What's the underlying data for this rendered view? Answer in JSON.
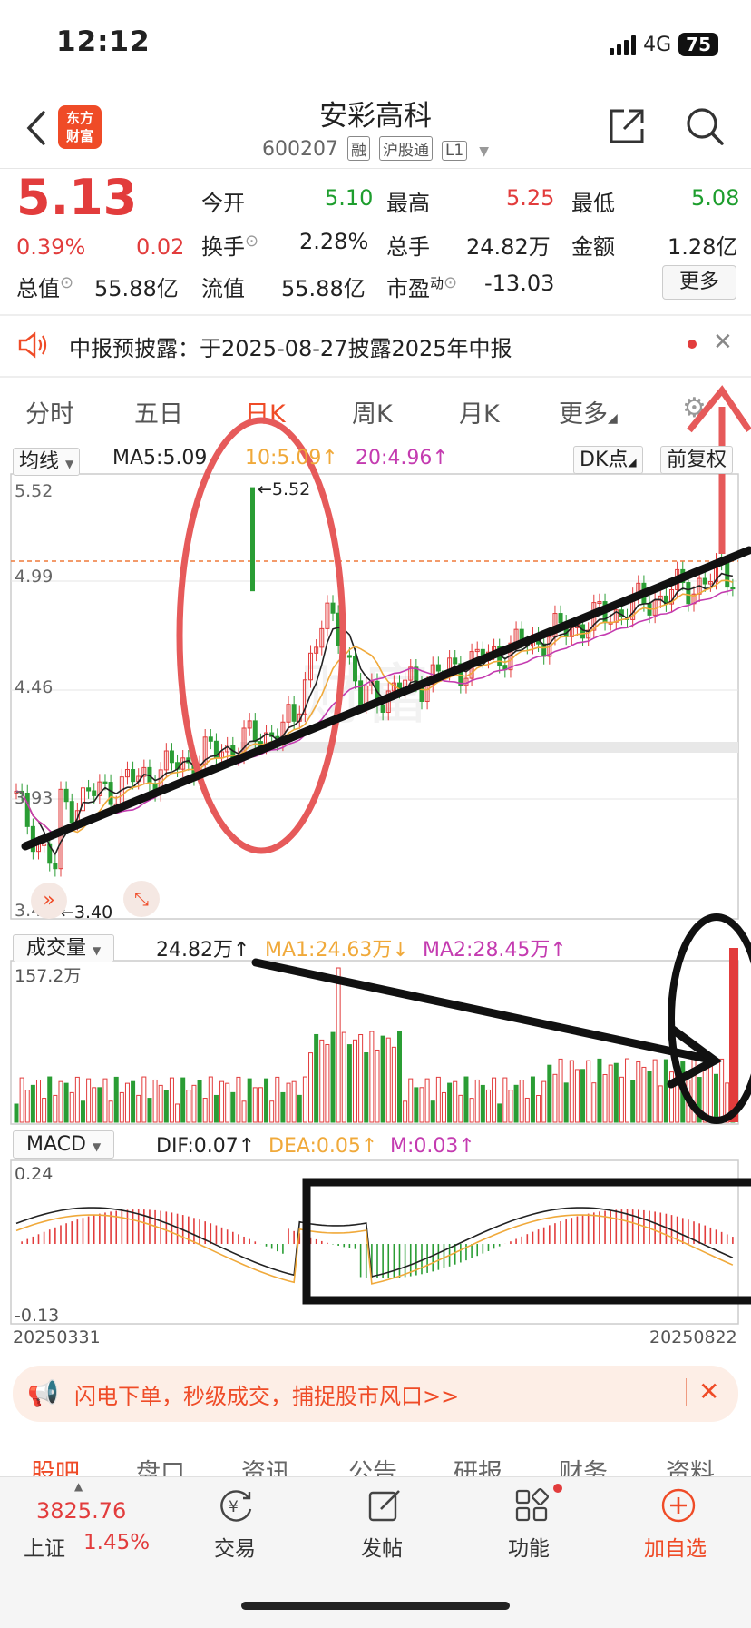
{
  "status": {
    "time": "12:12",
    "network": "4G",
    "battery": "75"
  },
  "header": {
    "stock_name": "安彩高科",
    "code": "600207",
    "tags": [
      "融",
      "沪股通",
      "L1"
    ],
    "logo_text": [
      "东方",
      "财富"
    ]
  },
  "quote": {
    "price": "5.13",
    "change_pct": "0.39%",
    "change_val": "0.02",
    "fields": [
      {
        "label": "今开",
        "value": "5.10",
        "color": "#1e9e2e"
      },
      {
        "label": "最高",
        "value": "5.25",
        "color": "#e23c3c"
      },
      {
        "label": "最低",
        "value": "5.08",
        "color": "#1e9e2e"
      },
      {
        "label": "换手",
        "value": "2.28%",
        "color": "#222222"
      },
      {
        "label": "总手",
        "value": "24.82万",
        "color": "#222222"
      },
      {
        "label": "金额",
        "value": "1.28亿",
        "color": "#222222"
      },
      {
        "label": "流值",
        "value": "55.88亿",
        "color": "#222222"
      },
      {
        "label": "市盈",
        "value": "-13.03",
        "color": "#222222"
      }
    ],
    "mktcap_label": "总值",
    "mktcap_value": "55.88亿",
    "pe_sup": "动",
    "more_label": "更多"
  },
  "notice": {
    "text": "中报预披露：于2025-08-27披露2025年中报"
  },
  "period_tabs": [
    "分时",
    "五日",
    "日K",
    "周K",
    "月K",
    "更多"
  ],
  "kline_legend": {
    "selector": "均线",
    "ma5": "MA5:5.09",
    "ma10": "10:5.09↑",
    "ma20": "20:4.96↑",
    "dk": "DK点",
    "adjust": "前复权"
  },
  "price_axis": [
    "5.52",
    "4.99",
    "4.46",
    "3.93",
    "3.40"
  ],
  "markers": {
    "high": "←5.52",
    "low": "←3.40"
  },
  "volume_legend": {
    "selector": "成交量",
    "vol": "24.82万↑",
    "ma1": "MA1:24.63万↓",
    "ma2": "MA2:28.45万↑",
    "axis_max": "157.2万"
  },
  "macd_legend": {
    "selector": "MACD",
    "dif": "DIF:0.07↑",
    "dea": "DEA:0.05↑",
    "m": "M:0.03↑",
    "axis_max": "0.24",
    "axis_min": "-0.13"
  },
  "dates": {
    "start": "20250331",
    "end": "20250822"
  },
  "ad": {
    "text": "闪电下单，秒级成交，捕捉股市风口>>"
  },
  "bottom_tabs": [
    "股吧",
    "盘口",
    "资讯",
    "公告",
    "研报",
    "财务",
    "资料"
  ],
  "bottom_nav": {
    "index_value": "3825.76",
    "index_name": "上证",
    "index_change": "1.45%",
    "items": [
      "交易",
      "发帖",
      "功能",
      "加自选"
    ]
  },
  "chart_data": {
    "type": "candlestick",
    "x_range": [
      "20250331",
      "20250822"
    ],
    "ylim": [
      3.4,
      5.52
    ],
    "last": {
      "open": 5.1,
      "high": 5.25,
      "low": 5.08,
      "close": 5.13
    },
    "ma": {
      "MA5": 5.09,
      "MA10": 5.09,
      "MA20": 4.96
    },
    "volume": {
      "last": "24.82万",
      "MA1": "24.63万",
      "MA2": "28.45万",
      "max": "157.2万"
    },
    "macd": {
      "DIF": 0.07,
      "DEA": 0.05,
      "M": 0.03,
      "ylim": [
        -0.13,
        0.24
      ]
    }
  }
}
